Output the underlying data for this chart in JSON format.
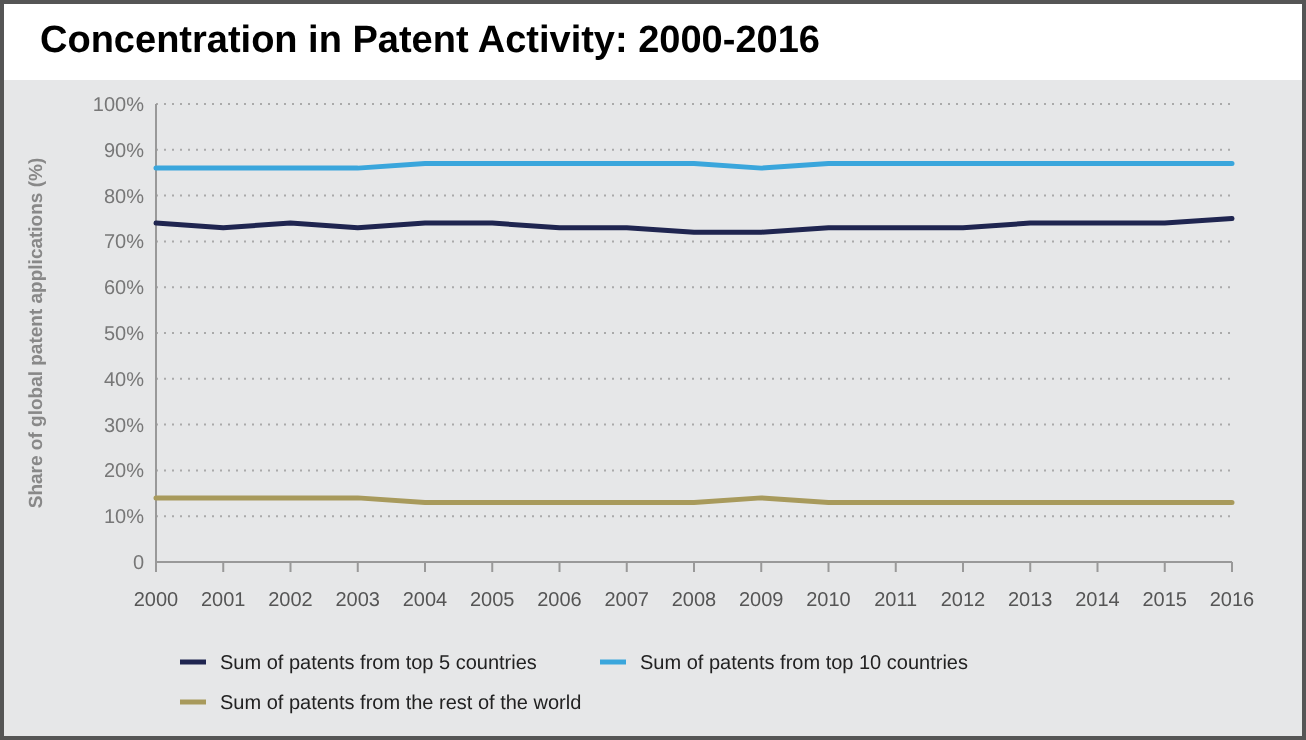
{
  "chart_data": {
    "type": "line",
    "title": "Concentration in Patent Activity: 2000-2016",
    "ylabel": "Share of global patent applications (%)",
    "categories": [
      "2000",
      "2001",
      "2002",
      "2003",
      "2004",
      "2005",
      "2006",
      "2007",
      "2008",
      "2009",
      "2010",
      "2011",
      "2012",
      "2013",
      "2014",
      "2015",
      "2016"
    ],
    "series": [
      {
        "name": "Sum of patents from top 5 countries",
        "color": "#1f2550",
        "values": [
          74,
          73,
          74,
          73,
          74,
          74,
          73,
          73,
          72,
          72,
          73,
          73,
          73,
          74,
          74,
          74,
          75
        ]
      },
      {
        "name": "Sum of patents from top 10 countries",
        "color": "#3aa6dc",
        "values": [
          86,
          86,
          86,
          86,
          87,
          87,
          87,
          87,
          87,
          86,
          87,
          87,
          87,
          87,
          87,
          87,
          87
        ]
      },
      {
        "name": "Sum of patents from the rest of the world",
        "color": "#a89a5c",
        "values": [
          14,
          14,
          14,
          14,
          13,
          13,
          13,
          13,
          13,
          14,
          13,
          13,
          13,
          13,
          13,
          13,
          13
        ]
      }
    ],
    "ylim": [
      0,
      100
    ],
    "yticks": [
      {
        "value": 0,
        "label": "0"
      },
      {
        "value": 10,
        "label": "10%"
      },
      {
        "value": 20,
        "label": "20%"
      },
      {
        "value": 30,
        "label": "30%"
      },
      {
        "value": 40,
        "label": "40%"
      },
      {
        "value": 50,
        "label": "50%"
      },
      {
        "value": 60,
        "label": "60%"
      },
      {
        "value": 70,
        "label": "70%"
      },
      {
        "value": 80,
        "label": "80%"
      },
      {
        "value": 90,
        "label": "90%"
      },
      {
        "value": 100,
        "label": "100%"
      }
    ],
    "grid": "y",
    "legend": "bottom",
    "line_style": "solid",
    "marker": "none"
  }
}
